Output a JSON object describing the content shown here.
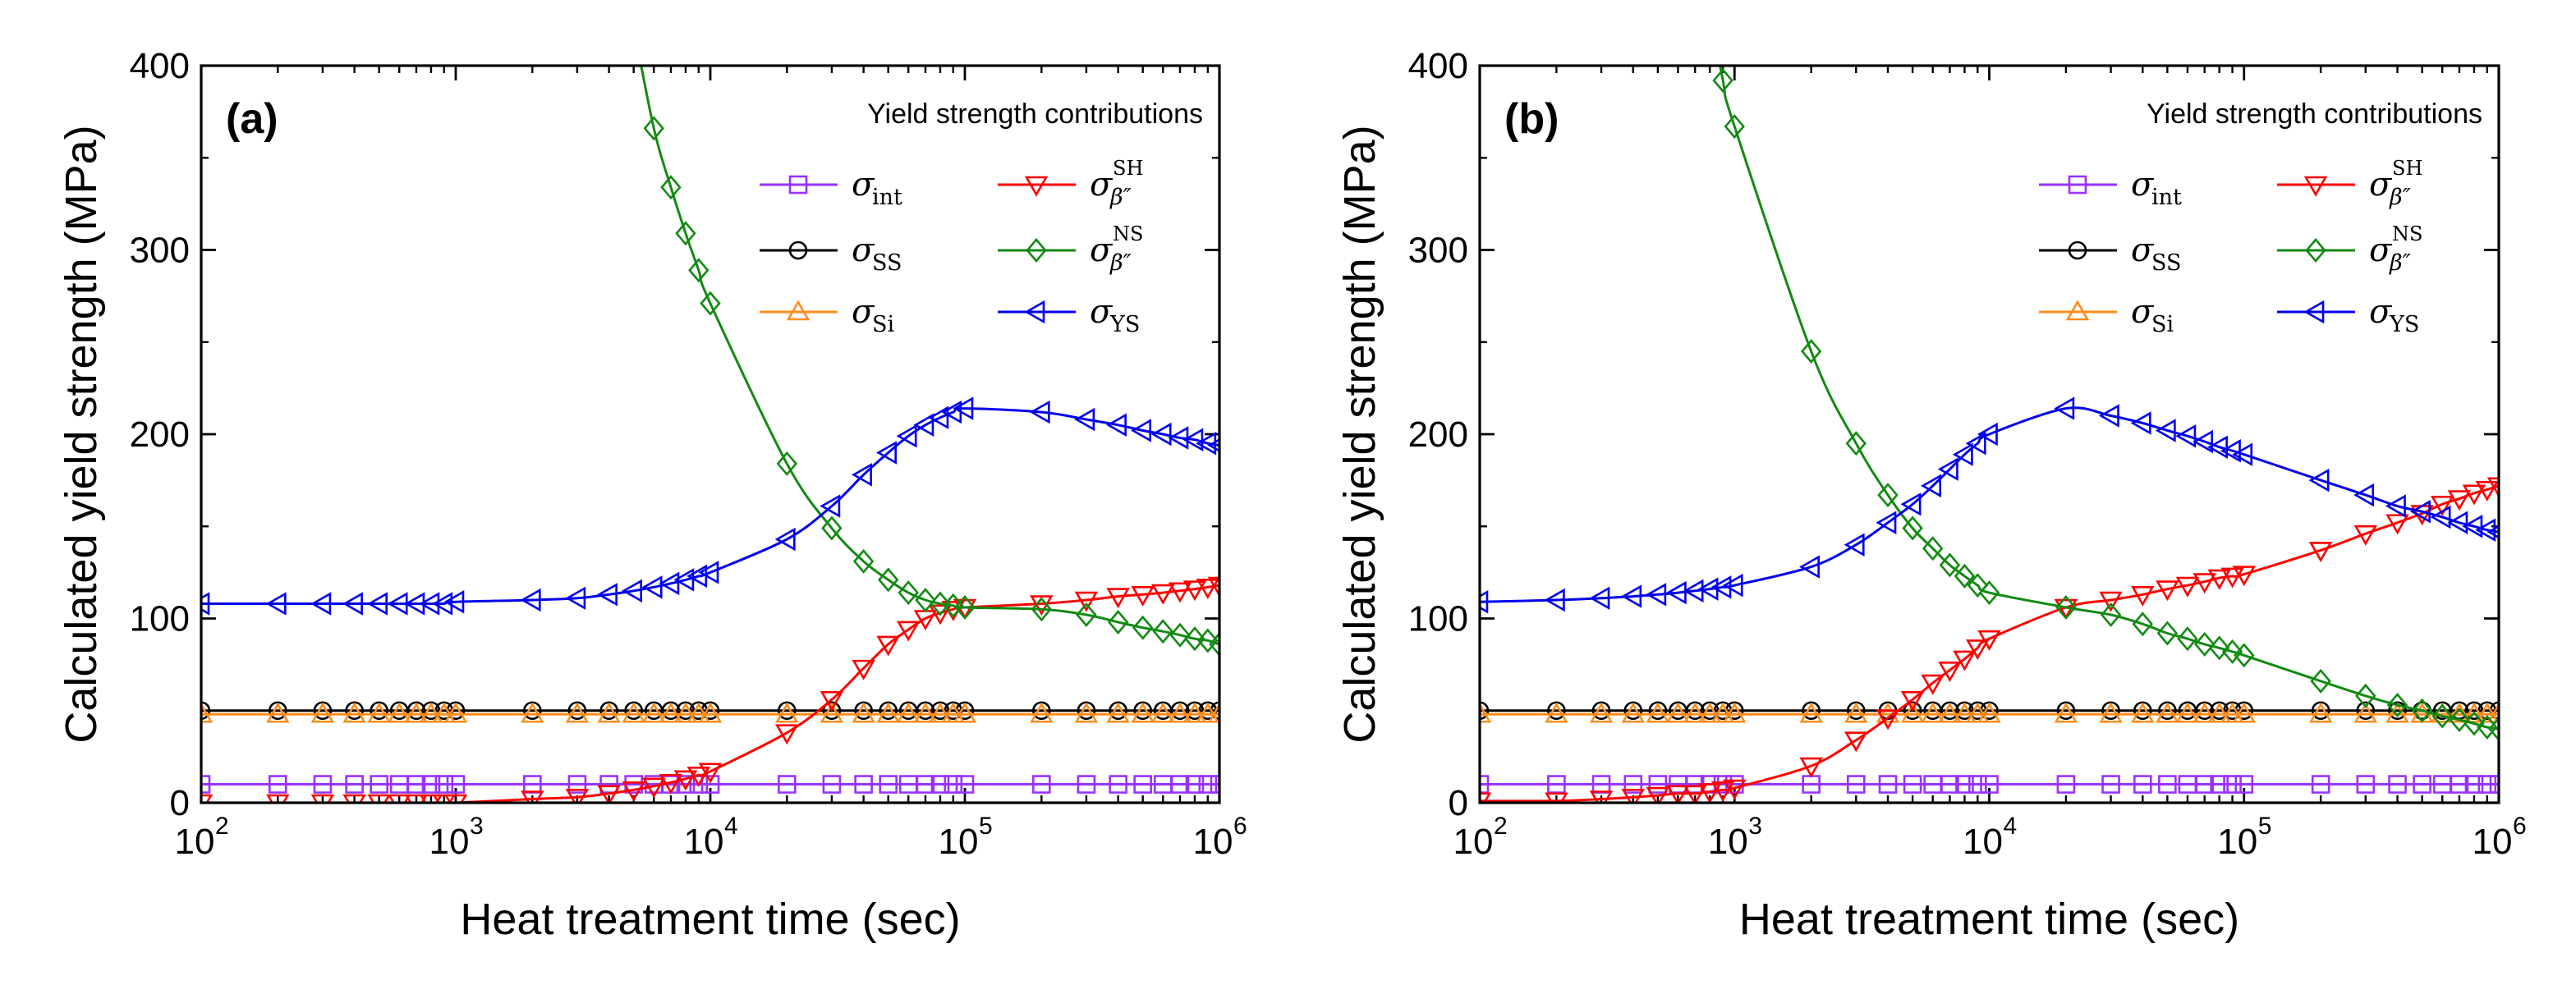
{
  "figure": {
    "description_labels": [
      "(a)",
      "(b)"
    ]
  },
  "series_styles": [
    {
      "key": "int",
      "sub": "int",
      "sup": "",
      "sub_italic": false,
      "color": "#9933ff",
      "marker": "square"
    },
    {
      "key": "SS",
      "sub": "SS",
      "sup": "",
      "sub_italic": false,
      "color": "#000000",
      "marker": "circle"
    },
    {
      "key": "Si",
      "sub": "Si",
      "sup": "",
      "sub_italic": false,
      "color": "#ff8c1a",
      "marker": "triangle-up"
    },
    {
      "key": "SH",
      "sub": "β″",
      "sup": "SH",
      "sub_italic": true,
      "color": "#ff0000",
      "marker": "triangle-down"
    },
    {
      "key": "NS",
      "sub": "β″",
      "sup": "NS",
      "sub_italic": true,
      "color": "#128a12",
      "marker": "diamond"
    },
    {
      "key": "YS",
      "sub": "YS",
      "sup": "",
      "sub_italic": false,
      "color": "#0000ee",
      "marker": "triangle-left"
    }
  ],
  "chart_data": [
    {
      "type": "line",
      "panel_label": "(a)",
      "xlabel": "Heat treatment time (sec)",
      "ylabel": "Calculated yield strength (MPa)",
      "xscale": "log",
      "xlim": [
        100,
        1000000
      ],
      "ylim": [
        0,
        400
      ],
      "yticks": [
        0,
        100,
        200,
        300,
        400
      ],
      "xticks": [
        {
          "base": "10",
          "exp": "2"
        },
        {
          "base": "10",
          "exp": "3"
        },
        {
          "base": "10",
          "exp": "4"
        },
        {
          "base": "10",
          "exp": "5"
        },
        {
          "base": "10",
          "exp": "6"
        }
      ],
      "legend_title": "Yield strength contributions",
      "legend_symbol": "σ",
      "legend_position": "top-right",
      "x": [
        100,
        200,
        300,
        400,
        500,
        600,
        700,
        800,
        900,
        1000,
        2000,
        3000,
        4000,
        5000,
        6000,
        7000,
        8000,
        9000,
        10000,
        20000,
        30000,
        40000,
        50000,
        60000,
        70000,
        80000,
        90000,
        100000,
        200000,
        300000,
        400000,
        500000,
        600000,
        700000,
        800000,
        900000,
        1000000
      ],
      "series": [
        {
          "name": "int",
          "values": [
            10,
            10,
            10,
            10,
            10,
            10,
            10,
            10,
            10,
            10,
            10,
            10,
            10,
            10,
            10,
            10,
            10,
            10,
            10,
            10,
            10,
            10,
            10,
            10,
            10,
            10,
            10,
            10,
            10,
            10,
            10,
            10,
            10,
            10,
            10,
            10,
            10
          ]
        },
        {
          "name": "SS",
          "values": [
            50,
            50,
            50,
            50,
            50,
            50,
            50,
            50,
            50,
            50,
            50,
            50,
            50,
            50,
            50,
            50,
            50,
            50,
            50,
            50,
            50,
            50,
            50,
            50,
            50,
            50,
            50,
            50,
            50,
            50,
            50,
            50,
            50,
            50,
            50,
            50,
            50
          ]
        },
        {
          "name": "Si",
          "values": [
            48,
            48,
            48,
            48,
            48,
            48,
            48,
            48,
            48,
            48,
            48,
            48,
            48,
            48,
            48,
            48,
            48,
            48,
            48,
            48,
            48,
            48,
            48,
            48,
            48,
            48,
            48,
            48,
            48,
            48,
            48,
            48,
            48,
            48,
            48,
            48,
            48
          ]
        },
        {
          "name": "SH",
          "values": [
            0,
            0,
            0,
            0,
            0,
            0,
            0,
            0,
            0,
            0,
            2,
            3,
            5,
            7,
            9,
            11,
            13,
            15,
            17,
            38,
            56,
            73,
            86,
            94,
            100,
            103,
            105,
            106,
            108,
            110,
            112,
            113,
            114,
            115,
            116,
            117,
            118
          ]
        },
        {
          "name": "NS",
          "values": [
            null,
            null,
            null,
            null,
            null,
            null,
            null,
            null,
            null,
            null,
            null,
            null,
            null,
            null,
            366,
            334,
            309,
            289,
            271,
            184,
            149,
            131,
            121,
            114,
            110,
            108,
            107,
            106,
            105,
            102,
            98,
            95,
            93,
            91,
            89,
            88,
            86
          ]
        },
        {
          "name": "YS",
          "values": [
            108,
            108,
            108,
            108,
            108,
            108,
            108,
            108,
            108,
            109,
            110,
            111,
            113,
            115,
            117,
            119,
            121,
            123,
            125,
            143,
            161,
            178,
            190,
            199,
            205,
            209,
            212,
            214,
            212,
            208,
            205,
            202,
            200,
            198,
            197,
            195,
            194
          ]
        }
      ]
    },
    {
      "type": "line",
      "panel_label": "(b)",
      "xlabel": "Heat treatment time (sec)",
      "ylabel": "Calculated yield strength (MPa)",
      "xscale": "log",
      "xlim": [
        100,
        1000000
      ],
      "ylim": [
        0,
        400
      ],
      "yticks": [
        0,
        100,
        200,
        300,
        400
      ],
      "xticks": [
        {
          "base": "10",
          "exp": "2"
        },
        {
          "base": "10",
          "exp": "3"
        },
        {
          "base": "10",
          "exp": "4"
        },
        {
          "base": "10",
          "exp": "5"
        },
        {
          "base": "10",
          "exp": "6"
        }
      ],
      "legend_title": "Yield strength contributions",
      "legend_symbol": "σ",
      "legend_position": "top-right",
      "x": [
        100,
        200,
        300,
        400,
        500,
        600,
        700,
        800,
        900,
        1000,
        2000,
        3000,
        4000,
        5000,
        6000,
        7000,
        8000,
        9000,
        10000,
        20000,
        30000,
        40000,
        50000,
        60000,
        70000,
        80000,
        90000,
        100000,
        200000,
        300000,
        400000,
        500000,
        600000,
        700000,
        800000,
        900000,
        1000000
      ],
      "series": [
        {
          "name": "int",
          "values": [
            10,
            10,
            10,
            10,
            10,
            10,
            10,
            10,
            10,
            10,
            10,
            10,
            10,
            10,
            10,
            10,
            10,
            10,
            10,
            10,
            10,
            10,
            10,
            10,
            10,
            10,
            10,
            10,
            10,
            10,
            10,
            10,
            10,
            10,
            10,
            10,
            10
          ]
        },
        {
          "name": "SS",
          "values": [
            50,
            50,
            50,
            50,
            50,
            50,
            50,
            50,
            50,
            50,
            50,
            50,
            50,
            50,
            50,
            50,
            50,
            50,
            50,
            50,
            50,
            50,
            50,
            50,
            50,
            50,
            50,
            50,
            50,
            50,
            50,
            50,
            50,
            50,
            50,
            50,
            50
          ]
        },
        {
          "name": "Si",
          "values": [
            48,
            48,
            48,
            48,
            48,
            48,
            48,
            48,
            48,
            48,
            48,
            48,
            48,
            48,
            48,
            48,
            48,
            48,
            48,
            48,
            48,
            48,
            48,
            48,
            48,
            48,
            48,
            48,
            48,
            48,
            48,
            48,
            48,
            48,
            48,
            48,
            48
          ]
        },
        {
          "name": "SH",
          "values": [
            1,
            1,
            2,
            3,
            4,
            5,
            5,
            6,
            7,
            8,
            20,
            34,
            46,
            56,
            65,
            72,
            78,
            84,
            89,
            106,
            110,
            113,
            116,
            118,
            120,
            122,
            123,
            124,
            137,
            146,
            152,
            157,
            162,
            165,
            168,
            170,
            172
          ]
        },
        {
          "name": "NS",
          "values": [
            null,
            null,
            null,
            null,
            null,
            null,
            null,
            null,
            392,
            367,
            245,
            195,
            167,
            149,
            138,
            129,
            123,
            118,
            114,
            106,
            102,
            97,
            92,
            89,
            86,
            84,
            82,
            80,
            66,
            58,
            53,
            50,
            47,
            45,
            43,
            41,
            40
          ]
        },
        {
          "name": "YS",
          "values": [
            109,
            110,
            111,
            112,
            113,
            114,
            115,
            116,
            117,
            118,
            128,
            140,
            152,
            162,
            172,
            181,
            189,
            195,
            200,
            214,
            210,
            206,
            202,
            199,
            196,
            193,
            191,
            189,
            175,
            167,
            161,
            158,
            155,
            152,
            150,
            148,
            147
          ]
        }
      ]
    }
  ]
}
